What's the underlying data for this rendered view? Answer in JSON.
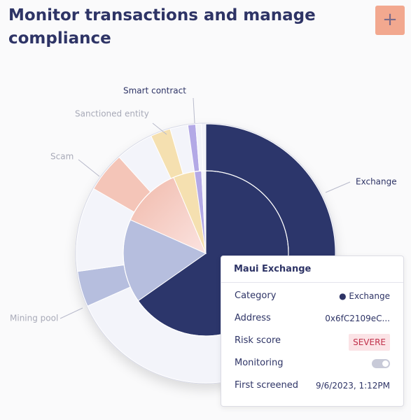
{
  "header": {
    "title": "Monitor transactions and manage compliance",
    "button": "+"
  },
  "chart": {
    "labels": [
      "Smart contract",
      "Sanctioned entity",
      "Scam",
      "Exchange",
      "Mining pool"
    ]
  },
  "tooltip": {
    "title": "Maui Exchange",
    "rows": [
      [
        "Category",
        "Exchange"
      ],
      [
        "Address",
        "0x6fC2109eC..."
      ],
      [
        "Risk score",
        "SEVERE"
      ],
      [
        "Monitoring"
      ],
      [
        "First screened",
        "9/6/2023, 1:12PM"
      ]
    ]
  }
}
